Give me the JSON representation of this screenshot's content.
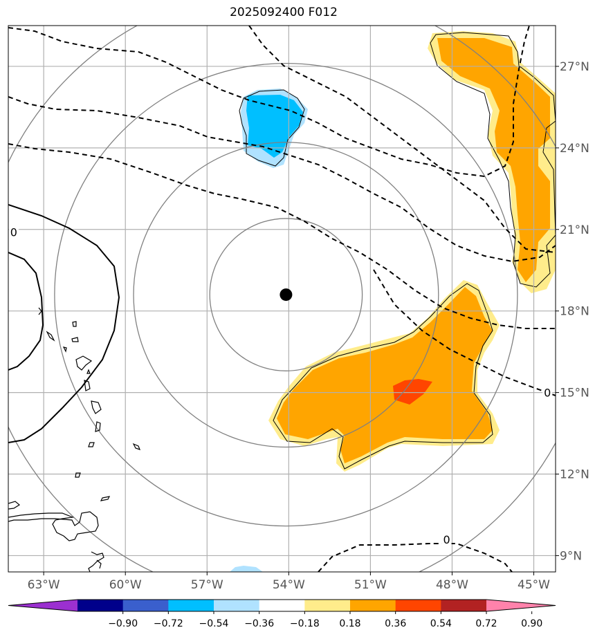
{
  "title": "2025092400 F012",
  "map": {
    "lon_range": [
      -64.3,
      -44.2
    ],
    "lat_range": [
      8.4,
      28.5
    ],
    "lon_ticks": [
      {
        "value": -63,
        "label": "63°W"
      },
      {
        "value": -60,
        "label": "60°W"
      },
      {
        "value": -57,
        "label": "57°W"
      },
      {
        "value": -54,
        "label": "54°W"
      },
      {
        "value": -51,
        "label": "51°W"
      },
      {
        "value": -48,
        "label": "48°W"
      },
      {
        "value": -45,
        "label": "45°W"
      }
    ],
    "lat_ticks": [
      {
        "value": 9,
        "label": "9°N"
      },
      {
        "value": 12,
        "label": "12°N"
      },
      {
        "value": 15,
        "label": "15°N"
      },
      {
        "value": 18,
        "label": "18°N"
      },
      {
        "value": 21,
        "label": "21°N"
      },
      {
        "value": 24,
        "label": "24°N"
      },
      {
        "value": 27,
        "label": "27°N"
      }
    ],
    "grid": true,
    "storm_center": {
      "lon": -54.1,
      "lat": 18.6
    },
    "range_rings_deg": [
      2.8,
      5.6,
      8.5,
      11.3
    ],
    "contour_labels": [
      {
        "text": "0",
        "lon": -64.1,
        "lat": 20.9
      },
      {
        "text": "0",
        "lon": -44.5,
        "lat": 15.0
      },
      {
        "text": "0",
        "lon": -48.2,
        "lat": 9.6
      }
    ]
  },
  "colorbar": {
    "labels": [
      "−0.90",
      "−0.72",
      "−0.54",
      "−0.36",
      "−0.18",
      "0.18",
      "0.36",
      "0.54",
      "0.72",
      "0.90"
    ],
    "colors": [
      "#9b30d0",
      "#00008b",
      "#3a5fcd",
      "#00bfff",
      "#b0e2ff",
      "#ffffff",
      "#ffec8b",
      "#ffa500",
      "#ff4500",
      "#b22222",
      "#ff82ab"
    ]
  }
}
